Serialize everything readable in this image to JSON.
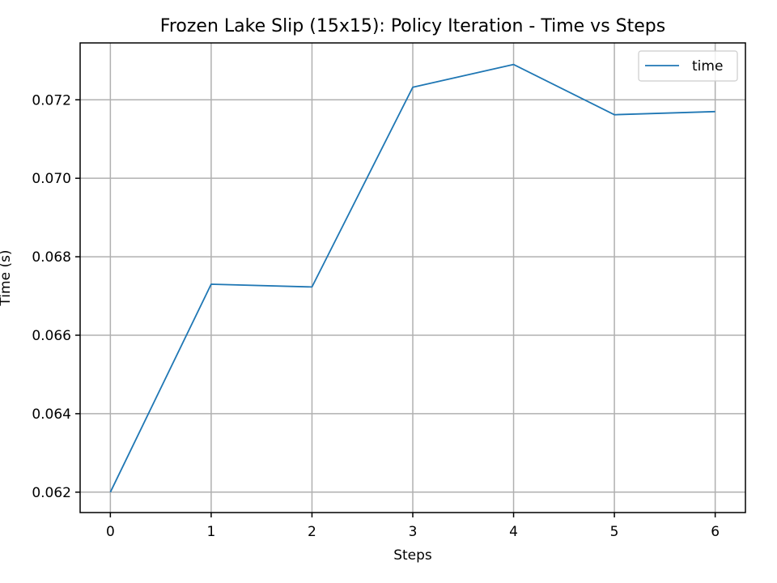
{
  "chart_data": {
    "type": "line",
    "title": "Frozen Lake Slip (15x15): Policy Iteration - Time vs Steps",
    "xlabel": "Steps",
    "ylabel": "Time (s)",
    "x": [
      0,
      1,
      2,
      3,
      4,
      5,
      6
    ],
    "series": [
      {
        "name": "time",
        "color": "#1f77b4",
        "values": [
          0.062,
          0.0673,
          0.06723,
          0.07232,
          0.0729,
          0.07162,
          0.0717
        ]
      }
    ],
    "xticks": [
      0,
      1,
      2,
      3,
      4,
      5,
      6
    ],
    "yticks": [
      0.062,
      0.064,
      0.066,
      0.068,
      0.07,
      0.072
    ],
    "ytick_labels": [
      "0.062",
      "0.064",
      "0.066",
      "0.068",
      "0.070",
      "0.072"
    ],
    "xlim": [
      -0.3,
      6.3
    ],
    "ylim": [
      0.06148,
      0.07345
    ],
    "grid": true,
    "legend_position": "top-right"
  }
}
